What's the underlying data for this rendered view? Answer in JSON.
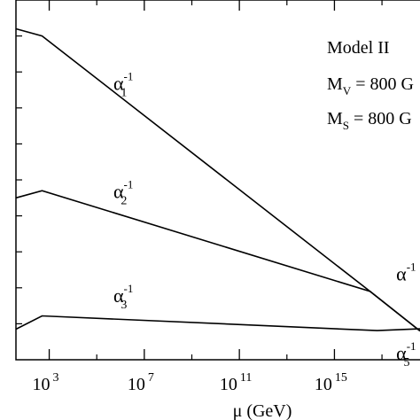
{
  "chart_data": {
    "type": "line",
    "xlabel": "μ (GeV)",
    "x_scale": "log10",
    "xlim_log10": [
      1.6,
      18.6
    ],
    "ylim": [
      0,
      100
    ],
    "x_ticks": [
      {
        "exp": 3,
        "base": "10",
        "sup": "3"
      },
      {
        "exp": 7,
        "base": "10",
        "sup": "7"
      },
      {
        "exp": 11,
        "base": "10",
        "sup": "11"
      },
      {
        "exp": 15,
        "base": "10",
        "sup": "15"
      }
    ],
    "x_minor_ticks": [
      5,
      9,
      13,
      17
    ],
    "y_ticks": [
      10,
      20,
      30,
      40,
      50,
      60,
      70,
      80,
      90
    ],
    "series": [
      {
        "label": {
          "base": "α",
          "sub": "1",
          "sup": "-1",
          "x": 5.7,
          "y": 75
        },
        "points": [
          [
            1.6,
            92
          ],
          [
            2.7,
            90
          ],
          [
            16.5,
            19
          ],
          [
            18.6,
            8
          ]
        ]
      },
      {
        "label": {
          "base": "α",
          "sub": "2",
          "sup": "-1",
          "x": 5.7,
          "y": 45
        },
        "points": [
          [
            1.6,
            45
          ],
          [
            2.7,
            47
          ],
          [
            16.5,
            19
          ],
          [
            18.6,
            8
          ]
        ]
      },
      {
        "label": {
          "base": "α",
          "sub": "3",
          "sup": "-1",
          "x": 5.7,
          "y": 16
        },
        "points": [
          [
            1.6,
            8.5
          ],
          [
            2.7,
            12.2
          ],
          [
            16.8,
            8.1
          ],
          [
            18.6,
            8.6
          ]
        ]
      }
    ],
    "edge_labels": [
      {
        "base": "α",
        "sub": "",
        "sup": "-1",
        "x": 17.6,
        "y": 22
      },
      {
        "base": "α",
        "sub": "5",
        "sup": "-1",
        "x": 17.6,
        "y": 0
      }
    ],
    "legend": {
      "model": "Model II",
      "mv_base": "M",
      "mv_sub": "V",
      "mv_rest": " = 800 G",
      "ms_base": "M",
      "ms_sub": "S",
      "ms_rest": " = 800 G"
    }
  }
}
